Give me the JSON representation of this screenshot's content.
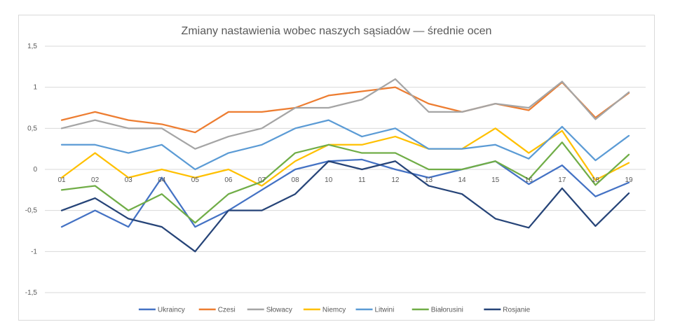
{
  "chart_data": {
    "type": "line",
    "title": "Zmiany nastawienia wobec naszych sąsiadów — średnie ocen",
    "xlabel": "",
    "ylabel": "",
    "ylim": [
      -1.5,
      1.5
    ],
    "yticks": [
      1.5,
      1,
      0.5,
      0,
      -0.5,
      -1,
      -1.5
    ],
    "ytick_labels": [
      "1,5",
      "1",
      "0,5",
      "0",
      "-0,5",
      "-1",
      "-1,5"
    ],
    "categories": [
      "01",
      "02",
      "03",
      "04",
      "05",
      "06",
      "07",
      "08",
      "10",
      "11",
      "12",
      "13",
      "14",
      "15",
      "16",
      "17",
      "18",
      "19"
    ],
    "grid": true,
    "legend_position": "bottom",
    "series": [
      {
        "name": "Ukraincy",
        "color": "#4472C4",
        "values": [
          -0.7,
          -0.5,
          -0.7,
          -0.1,
          -0.7,
          -0.5,
          -0.25,
          0.0,
          0.1,
          0.12,
          0.0,
          -0.1,
          0.0,
          0.1,
          -0.18,
          0.05,
          -0.33,
          -0.16
        ]
      },
      {
        "name": "Czesi",
        "color": "#ED7D31",
        "values": [
          0.6,
          0.7,
          0.6,
          0.55,
          0.45,
          0.7,
          0.7,
          0.75,
          0.9,
          0.95,
          1.0,
          0.8,
          0.7,
          0.8,
          0.72,
          1.06,
          0.63,
          0.93
        ]
      },
      {
        "name": "Słowacy",
        "color": "#A5A5A5",
        "values": [
          0.5,
          0.6,
          0.5,
          0.5,
          0.25,
          0.4,
          0.5,
          0.75,
          0.75,
          0.85,
          1.1,
          0.7,
          0.7,
          0.8,
          0.75,
          1.07,
          0.61,
          0.94
        ]
      },
      {
        "name": "Niemcy",
        "color": "#FFC000",
        "values": [
          -0.1,
          0.2,
          -0.1,
          0.0,
          -0.1,
          0.0,
          -0.2,
          0.1,
          0.3,
          0.3,
          0.4,
          0.25,
          0.25,
          0.5,
          0.2,
          0.47,
          -0.13,
          0.08
        ]
      },
      {
        "name": "Litwini",
        "color": "#5B9BD5",
        "values": [
          0.3,
          0.3,
          0.2,
          0.3,
          0.0,
          0.2,
          0.3,
          0.5,
          0.6,
          0.4,
          0.5,
          0.25,
          0.25,
          0.3,
          0.13,
          0.52,
          0.11,
          0.41
        ]
      },
      {
        "name": "Białorusini",
        "color": "#70AD47",
        "values": [
          -0.25,
          -0.2,
          -0.5,
          -0.3,
          -0.65,
          -0.3,
          -0.15,
          0.2,
          0.3,
          0.2,
          0.2,
          0.0,
          0.0,
          0.1,
          -0.12,
          0.33,
          -0.19,
          0.18
        ]
      },
      {
        "name": "Rosjanie",
        "color": "#264478",
        "values": [
          -0.5,
          -0.35,
          -0.6,
          -0.7,
          -1.0,
          -0.5,
          -0.5,
          -0.3,
          0.1,
          0.0,
          0.1,
          -0.2,
          -0.3,
          -0.6,
          -0.71,
          -0.23,
          -0.69,
          -0.29
        ]
      }
    ]
  }
}
